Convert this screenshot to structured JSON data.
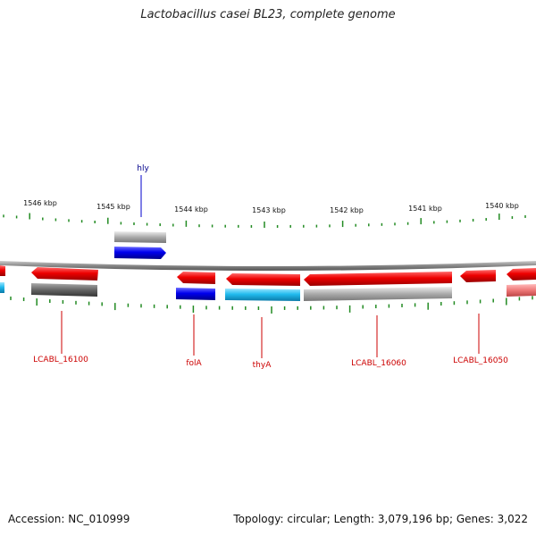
{
  "title": "Lactobacillus casei BL23, complete genome",
  "footer": {
    "accession": "Accession: NC_010999",
    "summary": "Topology: circular; Length: 3,079,196 bp; Genes: 3,022"
  },
  "colors": {
    "forward_cds": "#0000ee",
    "reverse_cds": "#ee0000",
    "rna_forward": "#999999",
    "rna_reverse": "#555555",
    "fwd_label": "#00008b",
    "rev_label": "#cc0000",
    "ticks": "#228b22",
    "backbone": "#888888"
  },
  "ticks": [
    {
      "label": "1546 kbp"
    },
    {
      "label": "1545 kbp"
    },
    {
      "label": "1544 kbp"
    },
    {
      "label": "1543 kbp"
    },
    {
      "label": "1542 kbp"
    },
    {
      "label": "1541 kbp"
    },
    {
      "label": "1540 kbp"
    }
  ],
  "gene_labels": [
    {
      "text": "hly",
      "strand": "forward"
    },
    {
      "text": "LCABL_16100",
      "strand": "reverse"
    },
    {
      "text": "folA",
      "strand": "reverse"
    },
    {
      "text": "thyA",
      "strand": "reverse"
    },
    {
      "text": "LCABL_16060",
      "strand": "reverse"
    },
    {
      "text": "LCABL_16050",
      "strand": "reverse"
    }
  ]
}
